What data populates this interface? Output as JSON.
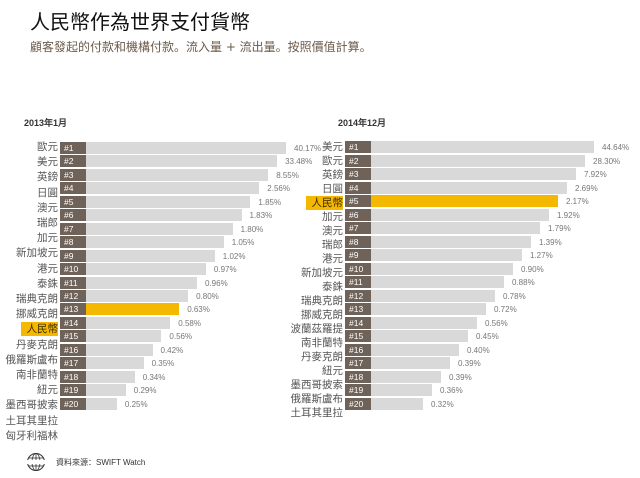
{
  "title": "人民幣作為世界支付貨幣",
  "subtitle": "顧客發起的付款和機構付款。流入量 + 流出量。按照價值計算。",
  "footer": {
    "source": "資料來源：SWIFT Watch",
    "logo_text": "SWIFT"
  },
  "colors": {
    "bar": "#d9d9d9",
    "highlight": "#f5b800",
    "rank_box": "#6f6259"
  },
  "chart_data": [
    {
      "type": "bar",
      "title": "2013年1月",
      "highlight": "人民幣",
      "categories": [
        "歐元",
        "美元",
        "英鎊",
        "日圓",
        "澳元",
        "瑞郎",
        "加元",
        "新加坡元",
        "港元",
        "泰銖",
        "瑞典克朗",
        "挪威克朗",
        "人民幣",
        "丹麥克朗",
        "俄羅斯盧布",
        "南非蘭特",
        "紐元",
        "墨西哥披索",
        "土耳其里拉",
        "匈牙利福林"
      ],
      "ranks": [
        "#1",
        "#2",
        "#3",
        "#4",
        "#5",
        "#6",
        "#7",
        "#8",
        "#9",
        "#10",
        "#11",
        "#12",
        "#13",
        "#14",
        "#15",
        "#16",
        "#17",
        "#18",
        "#19",
        "#20"
      ],
      "value_labels": [
        "40.17%",
        "33.48%",
        "8.55%",
        "2.56%",
        "1.85%",
        "1.83%",
        "1.80%",
        "1.05%",
        "1.02%",
        "0.97%",
        "0.96%",
        "0.80%",
        "0.63%",
        "0.58%",
        "0.56%",
        "0.42%",
        "0.35%",
        "0.34%",
        "0.29%",
        "0.25%"
      ],
      "values": [
        40.17,
        33.48,
        8.55,
        2.56,
        1.85,
        1.83,
        1.8,
        1.05,
        1.02,
        0.97,
        0.96,
        0.8,
        0.63,
        0.58,
        0.56,
        0.42,
        0.35,
        0.34,
        0.29,
        0.25
      ]
    },
    {
      "type": "bar",
      "title": "2014年12月",
      "highlight": "人民幣",
      "categories": [
        "美元",
        "歐元",
        "英鎊",
        "日圓",
        "人民幣",
        "加元",
        "澳元",
        "瑞郎",
        "港元",
        "新加坡元",
        "泰銖",
        "瑞典克朗",
        "挪威克朗",
        "波蘭茲羅提",
        "南非蘭特",
        "丹麥克朗",
        "紐元",
        "墨西哥披索",
        "俄羅斯盧布",
        "土耳其里拉"
      ],
      "ranks": [
        "#1",
        "#2",
        "#3",
        "#4",
        "#5",
        "#6",
        "#7",
        "#8",
        "#9",
        "#10",
        "#11",
        "#12",
        "#13",
        "#14",
        "#15",
        "#16",
        "#17",
        "#18",
        "#19",
        "#20"
      ],
      "value_labels": [
        "44.64%",
        "28.30%",
        "7.92%",
        "2.69%",
        "2.17%",
        "1.92%",
        "1.79%",
        "1.39%",
        "1.27%",
        "0.90%",
        "0.88%",
        "0.78%",
        "0.72%",
        "0.56%",
        "0.45%",
        "0.40%",
        "0.39%",
        "0.39%",
        "0.36%",
        "0.32%"
      ],
      "values": [
        44.64,
        28.3,
        7.92,
        2.69,
        2.17,
        1.92,
        1.79,
        1.39,
        1.27,
        0.9,
        0.88,
        0.78,
        0.72,
        0.56,
        0.45,
        0.4,
        0.39,
        0.39,
        0.36,
        0.32
      ]
    }
  ]
}
